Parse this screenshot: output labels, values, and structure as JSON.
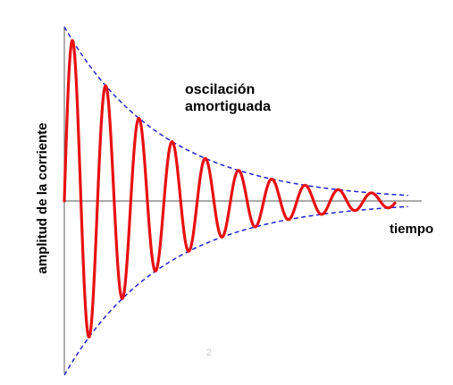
{
  "chart_data": {
    "type": "line",
    "title": "",
    "xlabel": "tiempo",
    "ylabel": "amplitud de la corriente",
    "xlim": [
      0,
      10
    ],
    "ylim": [
      -1,
      1
    ],
    "grid": false,
    "annotation": {
      "line1": "oscilación",
      "line2": "amortiguada"
    },
    "damping": 0.33,
    "angular_frequency": 6.25,
    "envelope_start": 1.0,
    "series": [
      {
        "kind": "oscillation",
        "color": "#e81010",
        "style": "solid"
      },
      {
        "kind": "envelope",
        "color": "#2222cc",
        "style": "dashed"
      }
    ]
  },
  "page_number": "2"
}
